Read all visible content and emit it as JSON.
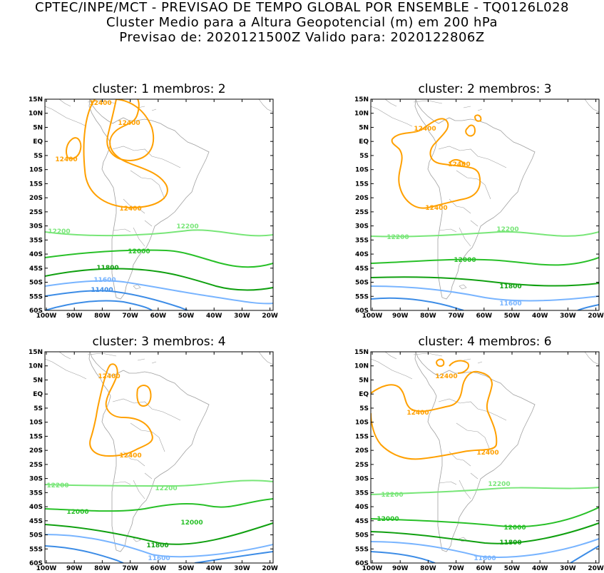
{
  "header": {
    "line1": "CPTEC/INPE/MCT - PREVISAO DE TEMPO GLOBAL POR ENSEMBLE - TQ0126L028",
    "line2": "Cluster Medio para a Altura Geopotencial (m) em 200 hPa",
    "line3": "Previsao de: 2020121500Z    Valido para: 2020122806Z"
  },
  "axes": {
    "lat_labels": [
      "15N",
      "10N",
      "5N",
      "EQ",
      "5S",
      "10S",
      "15S",
      "20S",
      "25S",
      "30S",
      "35S",
      "40S",
      "45S",
      "50S",
      "55S",
      "60S"
    ],
    "lon_labels": [
      "100W",
      "90W",
      "80W",
      "70W",
      "60W",
      "50W",
      "40W",
      "30W",
      "20W"
    ]
  },
  "colors": {
    "c12400": "#ffa000",
    "c12200": "#78e678",
    "c12000": "#28c028",
    "c11800": "#10a010",
    "c11600": "#78b4ff",
    "c11400": "#3c8ce6",
    "coast": "#a0a0a0"
  },
  "panels": [
    {
      "title": "cluster: 1   membros: 2",
      "labels": [
        {
          "text": "12400",
          "color": "c12400"
        },
        {
          "text": "12400",
          "color": "c12400"
        },
        {
          "text": "12400",
          "color": "c12400"
        },
        {
          "text": "12400",
          "color": "c12400"
        },
        {
          "text": "12200",
          "color": "c12200"
        },
        {
          "text": "12200",
          "color": "c12200"
        },
        {
          "text": "12000",
          "color": "c12000"
        },
        {
          "text": "11800",
          "color": "c11800"
        },
        {
          "text": "11600",
          "color": "c11600"
        },
        {
          "text": "11400",
          "color": "c11400"
        }
      ]
    },
    {
      "title": "cluster: 2   membros: 3",
      "labels": [
        {
          "text": "12400",
          "color": "c12400"
        },
        {
          "text": "12400",
          "color": "c12400"
        },
        {
          "text": "12400",
          "color": "c12400"
        },
        {
          "text": "12200",
          "color": "c12200"
        },
        {
          "text": "12200",
          "color": "c12200"
        },
        {
          "text": "12000",
          "color": "c12000"
        },
        {
          "text": "11800",
          "color": "c11800"
        },
        {
          "text": "11600",
          "color": "c11600"
        }
      ]
    },
    {
      "title": "cluster: 3   membros: 4",
      "labels": [
        {
          "text": "12400",
          "color": "c12400"
        },
        {
          "text": "12400",
          "color": "c12400"
        },
        {
          "text": "12200",
          "color": "c12200"
        },
        {
          "text": "12200",
          "color": "c12200"
        },
        {
          "text": "12000",
          "color": "c12000"
        },
        {
          "text": "12000",
          "color": "c12000"
        },
        {
          "text": "11800",
          "color": "c11800"
        },
        {
          "text": "11600",
          "color": "c11600"
        }
      ]
    },
    {
      "title": "cluster: 4   membros: 6",
      "labels": [
        {
          "text": "12400",
          "color": "c12400"
        },
        {
          "text": "12400",
          "color": "c12400"
        },
        {
          "text": "12400",
          "color": "c12400"
        },
        {
          "text": "12200",
          "color": "c12200"
        },
        {
          "text": "12200",
          "color": "c12200"
        },
        {
          "text": "12000",
          "color": "c12000"
        },
        {
          "text": "12000",
          "color": "c12000"
        },
        {
          "text": "11800",
          "color": "c11800"
        },
        {
          "text": "11600",
          "color": "c11600"
        }
      ]
    }
  ]
}
